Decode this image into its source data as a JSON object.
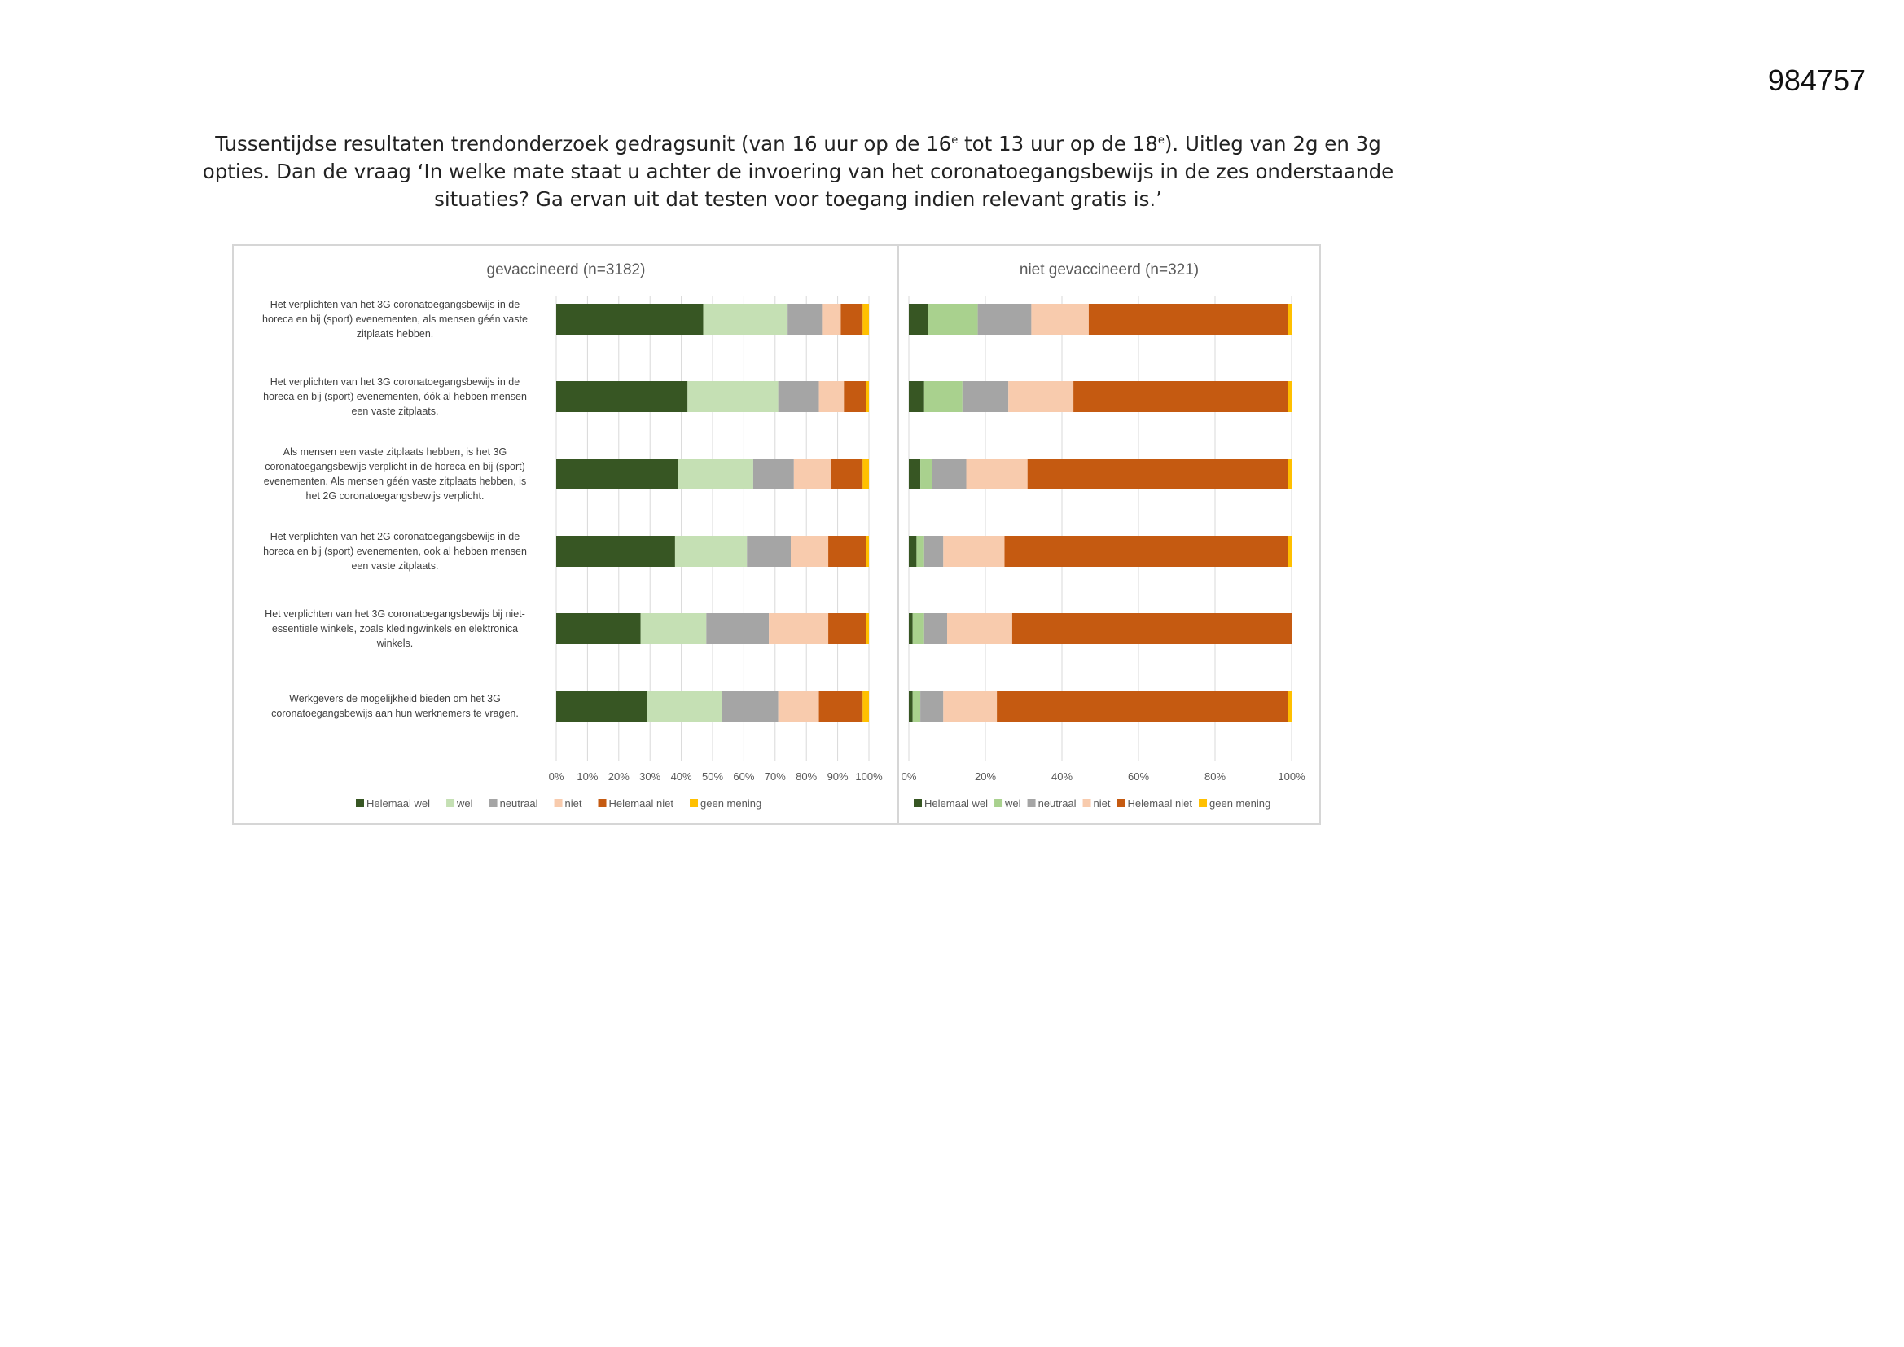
{
  "doc_number": "984757",
  "intro": {
    "part1": "Tussentijdse resultaten trendonderzoek gedragsunit (van 16 uur op de 16",
    "sup1": "e",
    "part2": " tot 13 uur op de 18",
    "sup2": "e",
    "part3": "). Uitleg van 2g en 3g",
    "line2": "opties. Dan de vraag ‘In welke mate staat u achter de invoering van het coronatoegangsbewijs in de zes onderstaande",
    "line3": "situaties? Ga ervan uit dat testen voor toegang indien relevant gratis is.’"
  },
  "colors": {
    "Helemaal wel": "#375623",
    "wel": "#c5e0b4",
    "wel_right": "#a9d18e",
    "neutraal": "#a5a5a5",
    "niet": "#f8cbad",
    "Helemaal niet": "#c55a11",
    "geen mening": "#ffc000"
  },
  "chart_data": [
    {
      "type": "bar",
      "orientation": "horizontal",
      "stacked": true,
      "title": "gevaccineerd (n=3182)",
      "xlim": [
        0,
        100
      ],
      "xticks": [
        "0%",
        "10%",
        "20%",
        "30%",
        "40%",
        "50%",
        "60%",
        "70%",
        "80%",
        "90%",
        "100%"
      ],
      "grid": true,
      "legend_position": "bottom",
      "categories": [
        [
          "Het verplichten van het 3G coronatoegangsbewijs in de",
          "horeca en bij (sport) evenementen, als mensen géén vaste",
          "zitplaats hebben."
        ],
        [
          "Het verplichten van het 3G coronatoegangsbewijs in de",
          "horeca en bij (sport) evenementen, óók al hebben mensen",
          "een vaste zitplaats."
        ],
        [
          "Als mensen een vaste zitplaats hebben, is het 3G",
          "coronatoegangsbewijs verplicht in de horeca en bij (sport)",
          "evenementen. Als mensen géén vaste zitplaats hebben, is",
          "het 2G coronatoegangsbewijs verplicht."
        ],
        [
          "Het verplichten van het 2G coronatoegangsbewijs in de",
          "horeca en bij (sport) evenementen, ook al hebben mensen",
          "een vaste zitplaats."
        ],
        [
          "Het verplichten van het 3G coronatoegangsbewijs bij niet-",
          "essentiële winkels, zoals kledingwinkels en elektronica",
          "winkels."
        ],
        [
          "Werkgevers de mogelijkheid bieden om het 3G",
          "coronatoegangsbewijs  aan hun werknemers te vragen."
        ]
      ],
      "series": [
        {
          "name": "Helemaal wel",
          "values": [
            47,
            42,
            39,
            38,
            27,
            29
          ]
        },
        {
          "name": "wel",
          "values": [
            27,
            29,
            24,
            23,
            21,
            24
          ]
        },
        {
          "name": "neutraal",
          "values": [
            11,
            13,
            13,
            14,
            20,
            18
          ]
        },
        {
          "name": "niet",
          "values": [
            6,
            8,
            12,
            12,
            19,
            13
          ]
        },
        {
          "name": "Helemaal niet",
          "values": [
            7,
            7,
            10,
            12,
            12,
            14
          ]
        },
        {
          "name": "geen mening",
          "values": [
            2,
            1,
            2,
            1,
            1,
            2
          ]
        }
      ]
    },
    {
      "type": "bar",
      "orientation": "horizontal",
      "stacked": true,
      "title": "niet gevaccineerd (n=321)",
      "xlim": [
        0,
        100
      ],
      "xticks": [
        "0%",
        "20%",
        "40%",
        "60%",
        "80%",
        "100%"
      ],
      "grid": true,
      "legend_position": "bottom",
      "series": [
        {
          "name": "Helemaal wel",
          "values": [
            5,
            4,
            3,
            2,
            1,
            1
          ]
        },
        {
          "name": "wel",
          "values": [
            13,
            10,
            3,
            2,
            3,
            2
          ]
        },
        {
          "name": "neutraal",
          "values": [
            14,
            12,
            9,
            5,
            6,
            6
          ]
        },
        {
          "name": "niet",
          "values": [
            15,
            17,
            16,
            16,
            17,
            14
          ]
        },
        {
          "name": "Helemaal niet",
          "values": [
            52,
            56,
            68,
            74,
            73,
            76
          ]
        },
        {
          "name": "geen mening",
          "values": [
            1,
            1,
            1,
            1,
            0,
            1
          ]
        }
      ]
    }
  ]
}
